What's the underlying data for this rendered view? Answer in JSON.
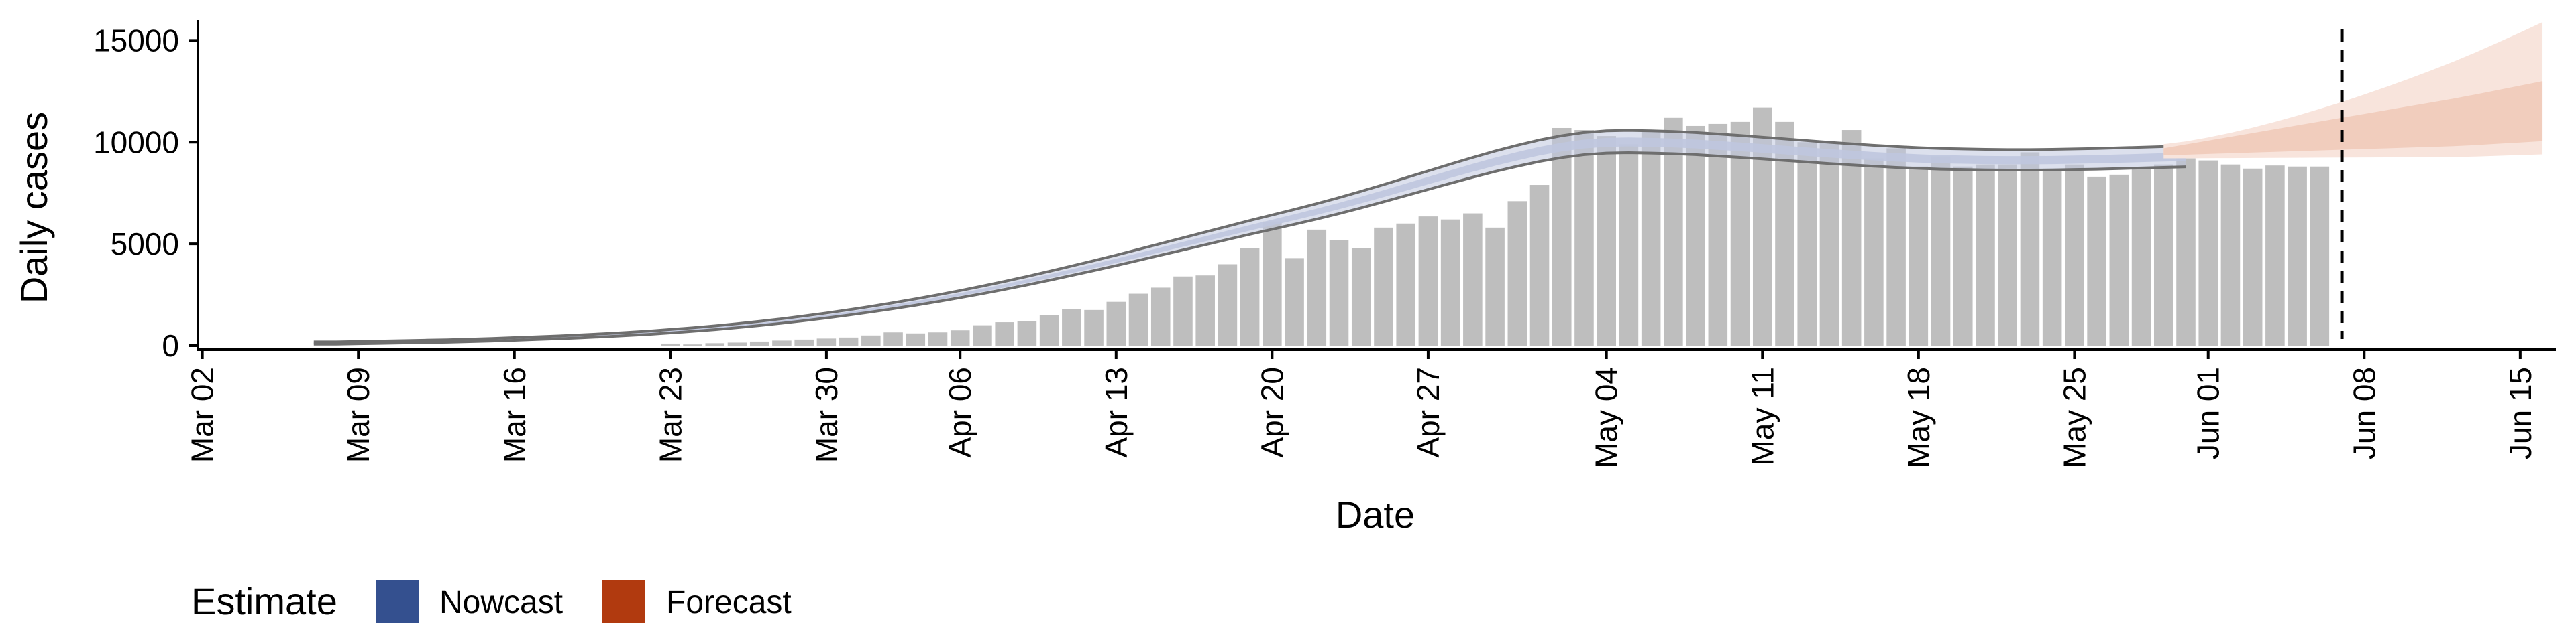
{
  "chart_data": {
    "type": "bar",
    "title": "",
    "xlabel": "Date",
    "ylabel": "Daily cases",
    "x_ticks": [
      "Mar 02",
      "Mar 09",
      "Mar 16",
      "Mar 23",
      "Mar 30",
      "Apr 06",
      "Apr 13",
      "Apr 20",
      "Apr 27",
      "May 04",
      "May 11",
      "May 18",
      "May 25",
      "Jun 01",
      "Jun 08",
      "Jun 15"
    ],
    "y_ticks": [
      "0",
      "5000",
      "10000",
      "15000"
    ],
    "ylim": [
      0,
      16000
    ],
    "xlim_days_from_mar02": [
      -0.2,
      105.6
    ],
    "dashed_vline": "Jun 07",
    "grid": false,
    "bars": {
      "start": "Mar 23",
      "values": [
        100,
        60,
        120,
        150,
        200,
        250,
        300,
        350,
        400,
        500,
        650,
        600,
        650,
        750,
        1000,
        1150,
        1200,
        1500,
        1800,
        1750,
        2150,
        2550,
        2850,
        3400,
        3450,
        4000,
        4800,
        6100,
        4300,
        5700,
        5200,
        4800,
        5800,
        6000,
        6350,
        6200,
        6500,
        5800,
        7100,
        7900,
        10700,
        10600,
        10300,
        9900,
        10600,
        11200,
        10800,
        10900,
        11000,
        11700,
        11000,
        10000,
        10000,
        10600,
        9200,
        9700,
        8800,
        9300,
        8800,
        8900,
        8900,
        9500,
        8700,
        8900,
        8300,
        8400,
        8700,
        8900,
        9200,
        9100,
        8900,
        8700,
        8850,
        8800,
        8800
      ]
    },
    "nowcast": {
      "start": "Mar 07",
      "median": [
        100,
        100,
        120,
        140,
        160,
        180,
        200,
        230,
        260,
        300,
        340,
        380,
        430,
        480,
        540,
        600,
        680,
        760,
        850,
        950,
        1060,
        1180,
        1310,
        1450,
        1600,
        1760,
        1930,
        2110,
        2300,
        2500,
        2710,
        2930,
        3160,
        3400,
        3650,
        3900,
        4160,
        4430,
        4700,
        4970,
        5240,
        5510,
        5780,
        6040,
        6300,
        6570,
        6850,
        7150,
        7460,
        7780,
        8100,
        8420,
        8730,
        9030,
        9300,
        9550,
        9750,
        9900,
        9980,
        10000,
        9980,
        9950,
        9900,
        9830,
        9760,
        9680,
        9600,
        9520,
        9440,
        9370,
        9300,
        9240,
        9190,
        9150,
        9130,
        9110,
        9100,
        9100,
        9110,
        9130,
        9150,
        9180,
        9210,
        9240,
        9270
      ]
    },
    "forecast": {
      "start": "May 29",
      "median": [
        9500,
        9570,
        9640,
        9710,
        9780,
        9850,
        9920,
        9990,
        10060,
        10130,
        10200,
        10270,
        10340,
        10410,
        10500,
        10600,
        10700,
        10800
      ]
    },
    "legend": {
      "title": "Estimate",
      "position": "bottom-left",
      "entries": [
        {
          "label": "Nowcast",
          "color": "#34508F"
        },
        {
          "label": "Forecast",
          "color": "#B13A0F"
        }
      ]
    },
    "colors": {
      "bars": "#BEBEBE",
      "nowcast_band": "#BFC7DE",
      "nowcast_outline": "#6E6E6E",
      "forecast_outer": "#F8E4DC",
      "forecast_inner": "#F1CDBD",
      "axis": "#000000"
    }
  }
}
